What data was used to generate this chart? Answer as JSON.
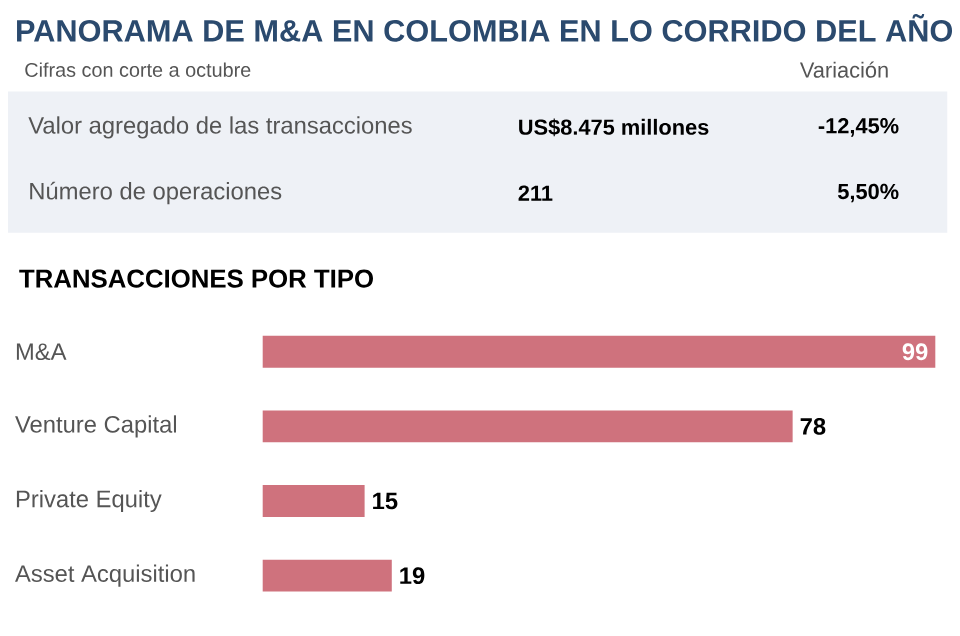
{
  "chart_data": [
    {
      "type": "other",
      "title": "PANORAMA DE M&A EN COLOMBIA EN LO CORRIDO DEL AÑO",
      "annotations": [
        "Cifras con corte a octubre",
        "Variación",
        "Valor agregado de las transacciones",
        "US$8.475 millones",
        "-12,45%",
        "Número de operaciones",
        "211",
        "5,50%"
      ]
    },
    {
      "type": "bar",
      "orientation": "horizontal",
      "title": "TRANSACCIONES POR TIPO",
      "categories": [
        "M&A",
        "Venture Capital",
        "Private Equity",
        "Asset Acquisition"
      ],
      "values": [
        99,
        78,
        15,
        19
      ],
      "color": "#cf727d",
      "data_labels": true
    }
  ]
}
